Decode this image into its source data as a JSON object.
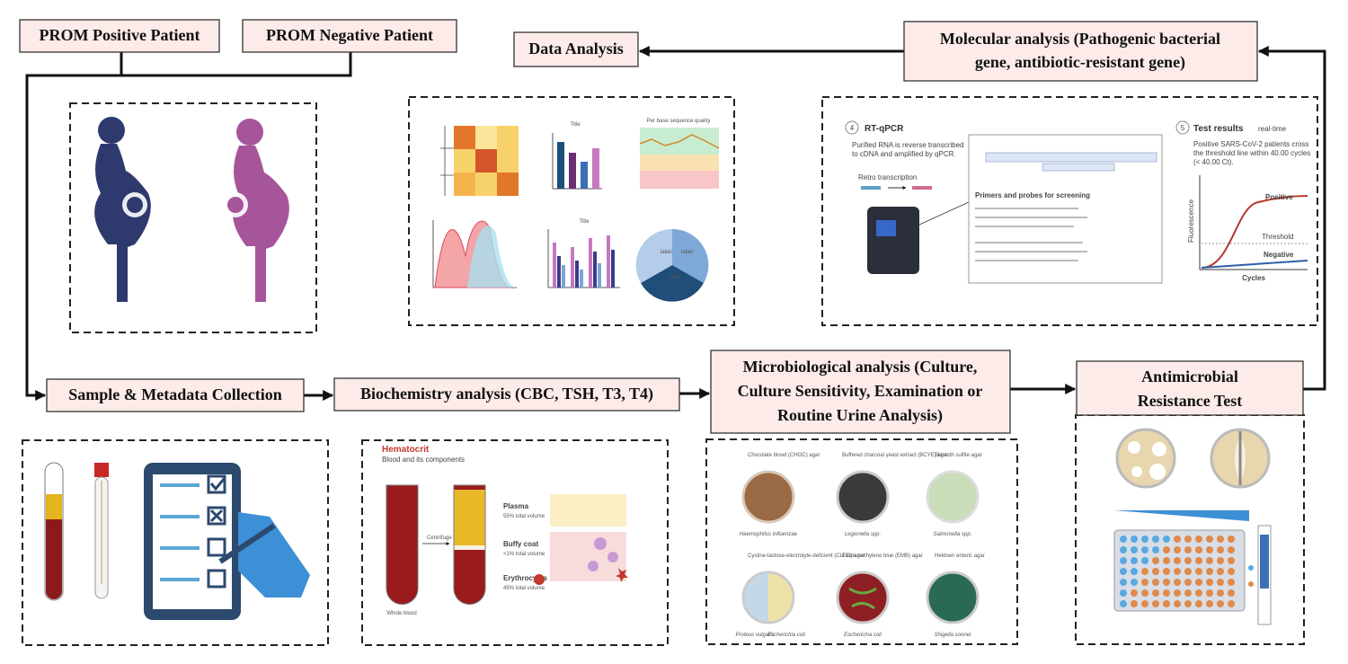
{
  "boxes": [
    {
      "lines": [
        "PROM Positive Patient"
      ]
    },
    {
      "lines": [
        "PROM Negative Patient"
      ]
    },
    {
      "lines": [
        "Data Analysis"
      ]
    },
    {
      "lines": [
        "Molecular analysis (Pathogenic bacterial",
        "gene, antibiotic-resistant gene)"
      ]
    },
    {
      "lines": [
        "Sample & Metadata Collection"
      ]
    },
    {
      "lines": [
        "Biochemistry analysis (CBC, TSH, T3, T4)"
      ]
    },
    {
      "lines": [
        "Microbiological analysis (Culture,",
        "Culture Sensitivity, Examination or",
        "Routine Urine Analysis)"
      ]
    },
    {
      "lines": [
        "Antimicrobial",
        "Resistance Test"
      ]
    }
  ],
  "charts_panel": {
    "bar_title": "Title",
    "line_title": "Per base sequence quality",
    "bar2_title": "Title",
    "pie_labels": [
      "label",
      "label",
      "label"
    ]
  },
  "molecular_panel": {
    "step": "4",
    "title": "RT-qPCR",
    "desc": [
      "Purified RNA is reverse transcribed",
      "to cDNA and amplified by qPCR."
    ],
    "retro": "Retro transcription",
    "primers": "Primers and probes for screening",
    "step2": "5",
    "results": "Test results",
    "results_note": "real-time",
    "results_desc": [
      "Positive SARS-CoV-2 patients cross",
      "the threshold line within 40.00 cycles",
      "(< 40.00 Ct)."
    ],
    "positive": "Positive",
    "threshold": "Threshold",
    "negative": "Negative",
    "ylabel": "Fluorescence",
    "xlabel": "Cycles"
  },
  "hematocrit_panel": {
    "title": "Hematocrit",
    "subtitle": "Blood and its components",
    "centrifuge": "Centrifuge",
    "whole_blood": "Whole blood",
    "plasma": "Plasma",
    "plasma_pct": "55% total volume",
    "buffy": "Buffy coat",
    "buffy_pct": "<1% total volume",
    "ery": "Erythrocytes",
    "ery_pct": "45% total volume"
  },
  "micro_panel": {
    "agars": [
      "Chocolate blood (CHOC) agar",
      "Buffered charcoal yeast extract (BCYE) agar",
      "Bismuth sulfite agar",
      "Cystine-lactose-electrolyte-deficient (CLED) agar",
      "Eosin methylene blue (EMB) agar",
      "Hektoen enteric agar"
    ],
    "organisms": [
      "Haemophilus influenzae",
      "Legionella spp.",
      "Salmonella spp.",
      "Proteus vulgaris",
      "Escherichia coli",
      "Escherichia coli",
      "Shigella sonnei"
    ]
  }
}
